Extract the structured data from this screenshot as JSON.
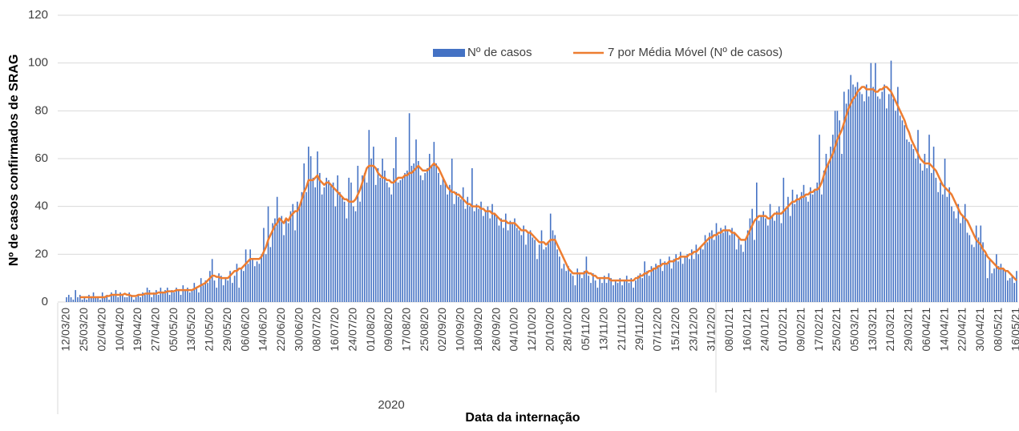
{
  "chart_data": {
    "type": "combo",
    "y_label": "Nº de casos confirmados de SRAG",
    "x_label": "Data da internação",
    "x_group_label": "2020",
    "ylim": [
      0,
      120
    ],
    "yticks": [
      0,
      20,
      40,
      60,
      80,
      100,
      120
    ],
    "grid": true,
    "legend": "top",
    "categories": [
      "12/03/20",
      null,
      null,
      null,
      null,
      null,
      null,
      null,
      "25/03/20",
      null,
      null,
      null,
      null,
      null,
      null,
      null,
      "02/04/20",
      null,
      null,
      null,
      null,
      null,
      null,
      null,
      "10/04/20",
      null,
      null,
      null,
      null,
      null,
      null,
      null,
      "19/04/20",
      null,
      null,
      null,
      null,
      null,
      null,
      null,
      "27/04/20",
      null,
      null,
      null,
      null,
      null,
      null,
      null,
      "05/05/20",
      null,
      null,
      null,
      null,
      null,
      null,
      null,
      "13/05/20",
      null,
      null,
      null,
      null,
      null,
      null,
      null,
      "21/05/20",
      null,
      null,
      null,
      null,
      null,
      null,
      null,
      "29/05/20",
      null,
      null,
      null,
      null,
      null,
      null,
      null,
      "06/06/20",
      null,
      null,
      null,
      null,
      null,
      null,
      null,
      "14/06/20",
      null,
      null,
      null,
      null,
      null,
      null,
      null,
      "22/06/20",
      null,
      null,
      null,
      null,
      null,
      null,
      null,
      "30/06/20",
      null,
      null,
      null,
      null,
      null,
      null,
      null,
      "08/07/20",
      null,
      null,
      null,
      null,
      null,
      null,
      null,
      "16/07/20",
      null,
      null,
      null,
      null,
      null,
      null,
      null,
      "24/07/20",
      null,
      null,
      null,
      null,
      null,
      null,
      null,
      "01/08/20",
      null,
      null,
      null,
      null,
      null,
      null,
      null,
      "09/08/20",
      null,
      null,
      null,
      null,
      null,
      null,
      null,
      "17/08/20",
      null,
      null,
      null,
      null,
      null,
      null,
      null,
      "25/08/20",
      null,
      null,
      null,
      null,
      null,
      null,
      null,
      "02/09/20",
      null,
      null,
      null,
      null,
      null,
      null,
      null,
      "10/09/20",
      null,
      null,
      null,
      null,
      null,
      null,
      null,
      "18/09/20",
      null,
      null,
      null,
      null,
      null,
      null,
      null,
      "26/09/20",
      null,
      null,
      null,
      null,
      null,
      null,
      null,
      "04/10/20",
      null,
      null,
      null,
      null,
      null,
      null,
      null,
      "12/10/20",
      null,
      null,
      null,
      null,
      null,
      null,
      null,
      "20/10/20",
      null,
      null,
      null,
      null,
      null,
      null,
      null,
      "28/10/20",
      null,
      null,
      null,
      null,
      null,
      null,
      null,
      "05/11/20",
      null,
      null,
      null,
      null,
      null,
      null,
      null,
      "13/11/20",
      null,
      null,
      null,
      null,
      null,
      null,
      null,
      "21/11/20",
      null,
      null,
      null,
      null,
      null,
      null,
      null,
      "29/11/20",
      null,
      null,
      null,
      null,
      null,
      null,
      null,
      "07/12/20",
      null,
      null,
      null,
      null,
      null,
      null,
      null,
      "15/12/20",
      null,
      null,
      null,
      null,
      null,
      null,
      null,
      "23/12/20",
      null,
      null,
      null,
      null,
      null,
      null,
      null,
      "31/12/20",
      null,
      null,
      null,
      null,
      null,
      null,
      null,
      "08/01/21",
      null,
      null,
      null,
      null,
      null,
      null,
      null,
      "16/01/21",
      null,
      null,
      null,
      null,
      null,
      null,
      null,
      "24/01/21",
      null,
      null,
      null,
      null,
      null,
      null,
      null,
      "01/02/21",
      null,
      null,
      null,
      null,
      null,
      null,
      null,
      "09/02/21",
      null,
      null,
      null,
      null,
      null,
      null,
      null,
      "17/02/21",
      null,
      null,
      null,
      null,
      null,
      null,
      null,
      "25/02/21",
      null,
      null,
      null,
      null,
      null,
      null,
      null,
      "05/03/21",
      null,
      null,
      null,
      null,
      null,
      null,
      null,
      "13/03/21",
      null,
      null,
      null,
      null,
      null,
      null,
      null,
      "21/03/21",
      null,
      null,
      null,
      null,
      null,
      null,
      null,
      "29/03/21",
      null,
      null,
      null,
      null,
      null,
      null,
      null,
      "06/04/21",
      null,
      null,
      null,
      null,
      null,
      null,
      null,
      "14/04/21",
      null,
      null,
      null,
      null,
      null,
      null,
      null,
      "22/04/21",
      null,
      null,
      null,
      null,
      null,
      null,
      null,
      "30/04/21",
      null,
      null,
      null,
      null,
      null,
      null,
      null,
      "08/05/21",
      null,
      null,
      null,
      null,
      null,
      null,
      null,
      "16/05/21"
    ],
    "series": [
      {
        "name": "Nº de casos",
        "type": "bar",
        "color": "#4472c4",
        "values": [
          2,
          3,
          2,
          1,
          5,
          2,
          3,
          1,
          2,
          1,
          3,
          2,
          4,
          2,
          2,
          1,
          4,
          2,
          3,
          1,
          4,
          3,
          5,
          2,
          4,
          3,
          2,
          2,
          4,
          3,
          1,
          2,
          3,
          2,
          4,
          3,
          6,
          5,
          2,
          4,
          5,
          3,
          6,
          4,
          5,
          6,
          3,
          5,
          4,
          6,
          5,
          3,
          7,
          5,
          6,
          4,
          5,
          8,
          6,
          4,
          10,
          7,
          9,
          8,
          13,
          18,
          9,
          6,
          12,
          11,
          7,
          10,
          9,
          13,
          8,
          11,
          16,
          6,
          14,
          13,
          22,
          16,
          22,
          18,
          15,
          17,
          16,
          20,
          31,
          20,
          40,
          23,
          33,
          35,
          44,
          35,
          36,
          28,
          35,
          33,
          38,
          41,
          30,
          42,
          40,
          46,
          58,
          46,
          65,
          61,
          52,
          48,
          63,
          54,
          45,
          48,
          52,
          51,
          49,
          50,
          40,
          53,
          46,
          44,
          42,
          35,
          52,
          50,
          40,
          38,
          57,
          42,
          53,
          54,
          50,
          72,
          60,
          65,
          49,
          56,
          52,
          60,
          55,
          50,
          48,
          45,
          56,
          69,
          50,
          51,
          52,
          54,
          55,
          79,
          57,
          58,
          68,
          59,
          53,
          51,
          54,
          56,
          62,
          57,
          67,
          58,
          54,
          49,
          52,
          50,
          45,
          49,
          60,
          41,
          46,
          44,
          43,
          48,
          39,
          44,
          40,
          56,
          38,
          41,
          39,
          42,
          36,
          38,
          40,
          35,
          41,
          37,
          36,
          32,
          35,
          31,
          37,
          30,
          34,
          33,
          35,
          31,
          30,
          28,
          32,
          24,
          29,
          30,
          27,
          26,
          18,
          24,
          30,
          22,
          23,
          25,
          37,
          30,
          28,
          22,
          19,
          14,
          16,
          13,
          15,
          12,
          11,
          7,
          14,
          12,
          10,
          13,
          19,
          11,
          8,
          12,
          9,
          6,
          10,
          8,
          11,
          8,
          12,
          10,
          7,
          9,
          8,
          10,
          7,
          9,
          11,
          8,
          10,
          6,
          9,
          11,
          12,
          10,
          17,
          13,
          11,
          15,
          14,
          16,
          15,
          18,
          13,
          17,
          16,
          19,
          14,
          18,
          20,
          17,
          21,
          16,
          19,
          20,
          18,
          22,
          18,
          24,
          20,
          23,
          22,
          28,
          25,
          29,
          30,
          26,
          33,
          28,
          31,
          29,
          32,
          30,
          28,
          31,
          29,
          22,
          27,
          24,
          21,
          26,
          30,
          35,
          39,
          26,
          50,
          34,
          36,
          38,
          35,
          32,
          41,
          36,
          34,
          38,
          40,
          33,
          52,
          39,
          44,
          36,
          47,
          41,
          45,
          43,
          46,
          49,
          44,
          42,
          48,
          45,
          47,
          50,
          70,
          45,
          55,
          62,
          58,
          65,
          70,
          80,
          80,
          76,
          62,
          88,
          83,
          89,
          95,
          91,
          90,
          92,
          88,
          87,
          84,
          91,
          86,
          100,
          90,
          100,
          86,
          85,
          88,
          91,
          81,
          87,
          101,
          85,
          80,
          90,
          78,
          76,
          74,
          68,
          67,
          66,
          64,
          60,
          72,
          58,
          55,
          62,
          56,
          70,
          54,
          65,
          52,
          46,
          50,
          45,
          60,
          44,
          48,
          40,
          38,
          35,
          41,
          33,
          36,
          41,
          29,
          28,
          24,
          23,
          32,
          27,
          32,
          25,
          20,
          10,
          18,
          12,
          14,
          20,
          15,
          16,
          14,
          13,
          9,
          10,
          11,
          8,
          13
        ]
      },
      {
        "name": "7 por Média Móvel (Nº de casos)",
        "type": "line",
        "color": "#ed7d31",
        "values": [
          null,
          null,
          null,
          null,
          null,
          null,
          2,
          2,
          2,
          2,
          2,
          2,
          2,
          2,
          2,
          2,
          2,
          2,
          2.5,
          2.5,
          3,
          3,
          3,
          3,
          3,
          3,
          3.5,
          3,
          3,
          2.5,
          2.5,
          2.5,
          3,
          3,
          3,
          3.5,
          3.5,
          3.5,
          3.5,
          3.5,
          3.5,
          4,
          4,
          4,
          4,
          4.5,
          4.5,
          4.5,
          4.5,
          5,
          5,
          5,
          5,
          5,
          5,
          5,
          5,
          5.5,
          6,
          6.5,
          7,
          7.5,
          8,
          9,
          10,
          11,
          11,
          10.5,
          10.5,
          10,
          10,
          10,
          10,
          11,
          12,
          13,
          13,
          14,
          14,
          15,
          16,
          17,
          18,
          18,
          18,
          18,
          18,
          19,
          21,
          23,
          26,
          28,
          30,
          32,
          33,
          35,
          34,
          33,
          35,
          34,
          36,
          37,
          38,
          38,
          40,
          43,
          46,
          48,
          51,
          51,
          51,
          52,
          53,
          51,
          50,
          49,
          50,
          50,
          49,
          48,
          47,
          46,
          45,
          44,
          43,
          43,
          42,
          42,
          42,
          43,
          45,
          47,
          50,
          53,
          56,
          57,
          57,
          57,
          56,
          54,
          53,
          52,
          52,
          51,
          51,
          50,
          50,
          51,
          52,
          52,
          52,
          53,
          53,
          54,
          54,
          55,
          56,
          57,
          56,
          55,
          55,
          55,
          56,
          57,
          58,
          57,
          56,
          54,
          52,
          50,
          48,
          47,
          46,
          46,
          45,
          45,
          44,
          43,
          42,
          41,
          41,
          40,
          40,
          40,
          40,
          39,
          39,
          38,
          38,
          38,
          37,
          37,
          36,
          35,
          34,
          34,
          34,
          33,
          33,
          33,
          33,
          32,
          31,
          30,
          30,
          30,
          29,
          29,
          28,
          27,
          26,
          25,
          25,
          25,
          24,
          25,
          26,
          26,
          26,
          24,
          22,
          20,
          18,
          16,
          14,
          13,
          12,
          12,
          12,
          12,
          12,
          12,
          13,
          12,
          12,
          11,
          11,
          10,
          10,
          10,
          10,
          10,
          10,
          9,
          9,
          9,
          9,
          9,
          9,
          9,
          9,
          9,
          9,
          9,
          10,
          10,
          11,
          11,
          12,
          12,
          13,
          13,
          14,
          14,
          15,
          15,
          16,
          16,
          16,
          17,
          17,
          17,
          18,
          18,
          19,
          19,
          19,
          19,
          20,
          20,
          21,
          21,
          22,
          23,
          24,
          25,
          26,
          27,
          27,
          28,
          28,
          29,
          29,
          30,
          30,
          30,
          30,
          29,
          29,
          28,
          27,
          26,
          26,
          26,
          28,
          30,
          32,
          34,
          35,
          36,
          36,
          36,
          36,
          35,
          35,
          36,
          37,
          37,
          37,
          37,
          38,
          39,
          40,
          41,
          42,
          42,
          43,
          43,
          44,
          44,
          45,
          45,
          46,
          46,
          47,
          47,
          48,
          50,
          53,
          56,
          58,
          60,
          62,
          65,
          68,
          70,
          72,
          75,
          78,
          81,
          83,
          85,
          86,
          88,
          89,
          90,
          90,
          89,
          89,
          89,
          89,
          88,
          88,
          89,
          89,
          90,
          90,
          89,
          88,
          86,
          84,
          82,
          80,
          78,
          76,
          73,
          71,
          68,
          66,
          64,
          62,
          60,
          59,
          58,
          58,
          58,
          57,
          56,
          55,
          53,
          51,
          49,
          48,
          47,
          46,
          45,
          43,
          41,
          39,
          37,
          36,
          35,
          34,
          32,
          30,
          28,
          26,
          25,
          24,
          22,
          21,
          19,
          18,
          17,
          16,
          15,
          14,
          14,
          14,
          13,
          13,
          12,
          11,
          10,
          9
        ]
      }
    ]
  }
}
